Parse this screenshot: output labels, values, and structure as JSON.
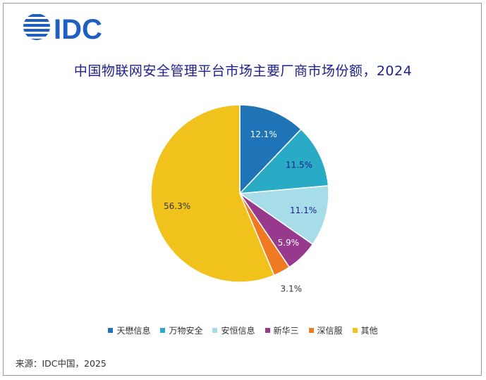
{
  "brand": {
    "logo_text": "IDC",
    "logo_color": "#1f5fbf"
  },
  "title": "中国物联网安全管理平台市场主要厂商市场份额，2024",
  "source": "来源：IDC中国，2025",
  "chart_data": {
    "type": "pie",
    "title": "中国物联网安全管理平台市场主要厂商市场份额，2024",
    "legend_position": "bottom",
    "unit": "%",
    "slices": [
      {
        "name": "天懋信息",
        "value": 12.1,
        "label": "12.1%",
        "color": "#1f73b7"
      },
      {
        "name": "万物安全",
        "value": 11.5,
        "label": "11.5%",
        "color": "#2aabc5"
      },
      {
        "name": "安恒信息",
        "value": 11.1,
        "label": "11.1%",
        "color": "#a6dde9"
      },
      {
        "name": "新华三",
        "value": 5.9,
        "label": "5.9%",
        "color": "#97398c"
      },
      {
        "name": "深信服",
        "value": 3.1,
        "label": "3.1%",
        "color": "#ef7a21"
      },
      {
        "name": "其他",
        "value": 56.3,
        "label": "56.3%",
        "color": "#f1c11c"
      }
    ]
  }
}
